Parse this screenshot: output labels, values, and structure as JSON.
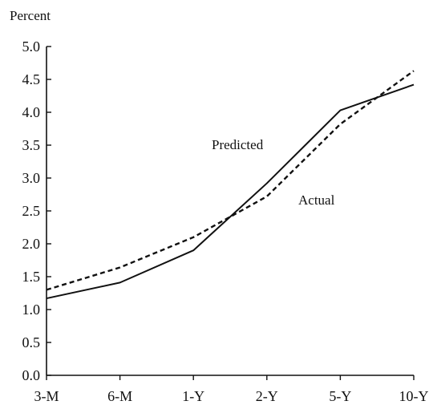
{
  "chart_data": {
    "type": "line",
    "ylabel": "Percent",
    "ylim": [
      0,
      5
    ],
    "y_ticks": [
      "0.0",
      "0.5",
      "1.0",
      "1.5",
      "2.0",
      "2.5",
      "3.0",
      "3.5",
      "4.0",
      "4.5",
      "5.0"
    ],
    "categories": [
      "3-M",
      "6-M",
      "1-Y",
      "2-Y",
      "5-Y",
      "10-Y"
    ],
    "grid": false,
    "series": [
      {
        "name": "Predicted",
        "style": "solid",
        "color": "#111111",
        "values": [
          1.17,
          1.41,
          1.9,
          2.92,
          4.03,
          4.42
        ]
      },
      {
        "name": "Actual",
        "style": "dashed",
        "color": "#111111",
        "values": [
          1.3,
          1.64,
          2.1,
          2.72,
          3.82,
          4.63
        ]
      }
    ],
    "annotations": [
      "Predicted",
      "Actual"
    ]
  }
}
